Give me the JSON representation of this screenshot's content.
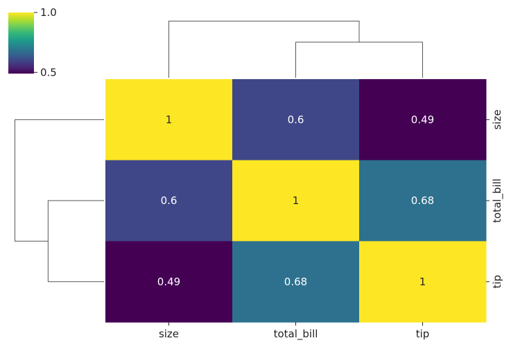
{
  "chart_data": {
    "type": "heatmap",
    "title": "",
    "xlabel": "",
    "ylabel": "",
    "x_labels": [
      "size",
      "total_bill",
      "tip"
    ],
    "y_labels": [
      "size",
      "total_bill",
      "tip"
    ],
    "values": [
      [
        1.0,
        0.6,
        0.49
      ],
      [
        0.6,
        1.0,
        0.68
      ],
      [
        0.49,
        0.68,
        1.0
      ]
    ],
    "annotations": [
      [
        "1",
        "0.6",
        "0.49"
      ],
      [
        "0.6",
        "1",
        "0.68"
      ],
      [
        "0.49",
        "0.68",
        "1"
      ]
    ],
    "colormap": "viridis",
    "vmin": 0.49,
    "vmax": 1.0,
    "colorbar": {
      "ticks": [
        1.0,
        0.5
      ],
      "tick_labels": [
        "1.0",
        "0.5"
      ],
      "placement": "top-left"
    },
    "dendrograms": {
      "column": {
        "merges": [
          {
            "left": "total_bill",
            "right": "tip",
            "height": 0.32
          },
          {
            "left": "size",
            "right": "[total_bill,tip]",
            "height": 0.51
          }
        ]
      },
      "row": {
        "merges": [
          {
            "left": "total_bill",
            "right": "tip",
            "height": 0.32
          },
          {
            "left": "size",
            "right": "[total_bill,tip]",
            "height": 0.51
          }
        ]
      }
    },
    "colors": {
      "viridis_stops": [
        "#440154",
        "#482878",
        "#3e4989",
        "#31688e",
        "#26828e",
        "#1f9e89",
        "#35b779",
        "#6ece58",
        "#b5de2b",
        "#fde725"
      ],
      "dendrogram_line": "#555555"
    }
  }
}
